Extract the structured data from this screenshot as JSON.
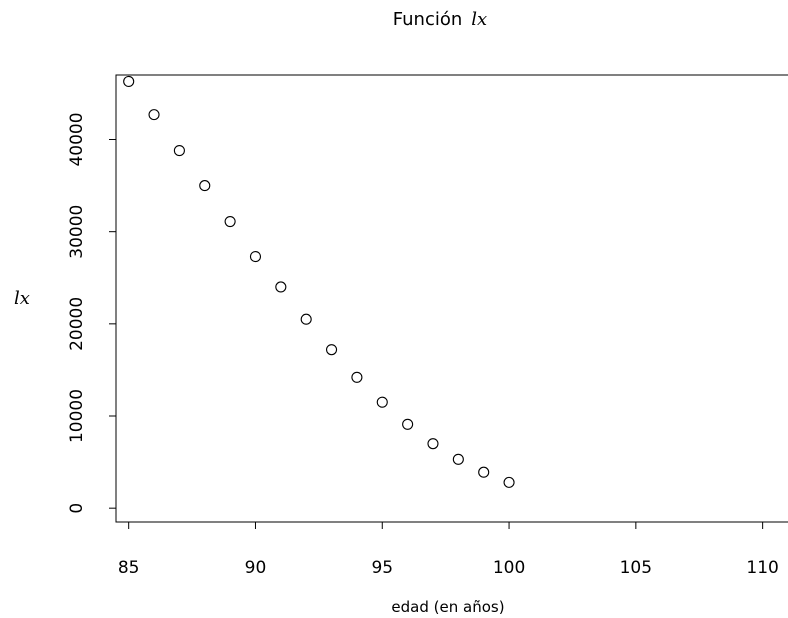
{
  "chart_data": {
    "type": "scatter",
    "title": "Función lx",
    "title_plain": "Función",
    "title_italic": "lx",
    "xlabel": "edad (en años)",
    "ylabel": "lx",
    "xlim": [
      84.5,
      111
    ],
    "ylim": [
      -1500,
      47000
    ],
    "xticks": [
      85,
      90,
      95,
      100,
      105,
      110
    ],
    "yticks": [
      0,
      10000,
      20000,
      30000,
      40000
    ],
    "marker": "open-circle",
    "grid": false,
    "x": [
      85,
      86,
      87,
      88,
      89,
      90,
      91,
      92,
      93,
      94,
      95,
      96,
      97,
      98,
      99,
      100
    ],
    "y": [
      46300,
      42700,
      38800,
      35000,
      31100,
      27300,
      24000,
      20500,
      17200,
      14200,
      11500,
      9100,
      7000,
      5300,
      3900,
      2800
    ]
  }
}
